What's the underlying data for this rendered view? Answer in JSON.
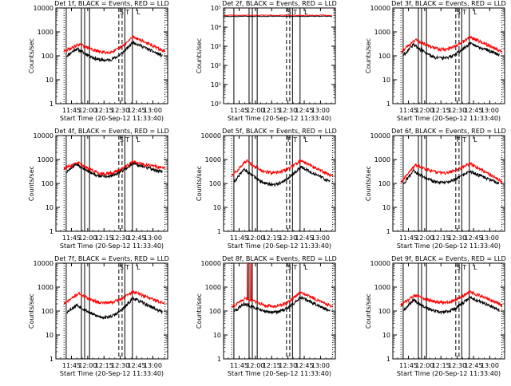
{
  "colors": {
    "black_series": "#000000",
    "red_series": "#ff0000",
    "axes": "#000000"
  },
  "chart_data": [
    {
      "type": "line",
      "title": "Det 1f, BLACK = Events, RED = LLD",
      "xlabel": "Start Time (20-Sep-12 11:33:40)",
      "ylabel": "Counts/sec",
      "ylog": true,
      "ylim": [
        1,
        10000
      ],
      "yticks": [
        "1",
        "10",
        "100",
        "1000",
        "10000"
      ],
      "xrange_min": [
        -3,
        100
      ],
      "xticks": [
        {
          "label": "11:45",
          "min": 11.33
        },
        {
          "label": "12:00",
          "min": 26.33
        },
        {
          "label": "12:15",
          "min": 41.33
        },
        {
          "label": "12:30",
          "min": 56.33
        },
        {
          "label": "12:45",
          "min": 71.33
        },
        {
          "label": "13:00",
          "min": 86.33
        }
      ],
      "solid_markers_min": [
        6.5,
        20.5,
        23.5,
        28.0,
        60.5,
        67.5
      ],
      "dashed_markers_min": [
        55.0,
        58.0
      ],
      "dotted_markers_min": [
        4.5,
        97.5
      ],
      "bracket_labels": [
        {
          "text": "S",
          "min": 57.5
        },
        {
          "text": "T",
          "min": 63.0
        },
        {
          "text": "L",
          "min": 73.0
        }
      ],
      "red_profile": {
        "type": "double",
        "start": 4.5,
        "end": 97.5,
        "base": 150,
        "peaks": [
          {
            "min": 18,
            "val": 300
          },
          {
            "min": 68,
            "val": 650
          }
        ],
        "dip": 140
      },
      "black_profile": {
        "type": "double",
        "start": 7,
        "end": 95,
        "base": 100,
        "peaks": [
          {
            "min": 16,
            "val": 200
          },
          {
            "min": 68,
            "val": 380
          }
        ],
        "dip": 65
      }
    },
    {
      "type": "line",
      "title": "Det 2f, BLACK = Events, RED = LLD",
      "xlabel": "Start Time (20-Sep-12 11:33:40)",
      "ylabel": "Counts/sec",
      "ylog": true,
      "ylim": [
        1,
        1000000
      ],
      "yticks": [
        "10⁰",
        "10¹",
        "10²",
        "10³",
        "10⁴",
        "10⁵"
      ],
      "xrange_min": [
        -3,
        100
      ],
      "xticks": [
        {
          "label": "11:45",
          "min": 11.33
        },
        {
          "label": "12:00",
          "min": 26.33
        },
        {
          "label": "12:15",
          "min": 41.33
        },
        {
          "label": "12:30",
          "min": 56.33
        },
        {
          "label": "12:45",
          "min": 71.33
        },
        {
          "label": "13:00",
          "min": 86.33
        }
      ],
      "solid_markers_min": [
        6.5,
        20.5,
        23.5,
        28.0,
        60.5,
        67.5
      ],
      "dashed_markers_min": [
        55.0,
        58.0
      ],
      "dotted_markers_min": [],
      "bracket_labels": [
        {
          "text": "S",
          "min": 57.5
        },
        {
          "text": "T",
          "min": 63.0
        },
        {
          "text": "L",
          "min": 73.0
        }
      ],
      "red_profile": {
        "type": "flat",
        "start": -3,
        "end": 97.5,
        "level": 350000
      },
      "black_profile": {
        "type": "flat",
        "start": -3,
        "end": 97.5,
        "level": 300000
      }
    },
    {
      "type": "line",
      "title": "Det 3f, BLACK = Events, RED = LLD",
      "xlabel": "Start Time (20-Sep-12 11:33:40)",
      "ylabel": "Counts/sec",
      "ylog": true,
      "ylim": [
        1,
        10000
      ],
      "yticks": [
        "1",
        "10",
        "100",
        "1000",
        "10000"
      ],
      "xrange_min": [
        -3,
        100
      ],
      "xticks": [
        {
          "label": "11:45",
          "min": 11.33
        },
        {
          "label": "12:00",
          "min": 26.33
        },
        {
          "label": "12:15",
          "min": 41.33
        },
        {
          "label": "12:30",
          "min": 56.33
        },
        {
          "label": "12:45",
          "min": 71.33
        },
        {
          "label": "13:00",
          "min": 86.33
        }
      ],
      "solid_markers_min": [
        6.5,
        20.5,
        23.5,
        28.0,
        60.5,
        67.5
      ],
      "dashed_markers_min": [
        55.0,
        58.0
      ],
      "dotted_markers_min": [
        4.5,
        97.5
      ],
      "bracket_labels": [
        {
          "text": "S",
          "min": 57.5
        },
        {
          "text": "T",
          "min": 63.0
        },
        {
          "text": "L",
          "min": 73.0
        }
      ],
      "red_profile": {
        "type": "double",
        "start": 4.5,
        "end": 97.5,
        "base": 150,
        "peaks": [
          {
            "min": 18,
            "val": 480
          },
          {
            "min": 68,
            "val": 620
          }
        ],
        "dip": 190
      },
      "black_profile": {
        "type": "double",
        "start": 7,
        "end": 95,
        "base": 110,
        "peaks": [
          {
            "min": 16,
            "val": 300
          },
          {
            "min": 68,
            "val": 340
          }
        ],
        "dip": 80
      }
    },
    {
      "type": "line",
      "title": "Det 4f, BLACK = Events, RED = LLD",
      "xlabel": "Start Time (20-Sep-12 11:33:40)",
      "ylabel": "Counts/sec",
      "ylog": true,
      "ylim": [
        1,
        10000
      ],
      "yticks": [
        "1",
        "10",
        "100",
        "1000",
        "10000"
      ],
      "xrange_min": [
        -3,
        100
      ],
      "xticks": [
        {
          "label": "11:45",
          "min": 11.33
        },
        {
          "label": "12:00",
          "min": 26.33
        },
        {
          "label": "12:15",
          "min": 41.33
        },
        {
          "label": "12:30",
          "min": 56.33
        },
        {
          "label": "12:45",
          "min": 71.33
        },
        {
          "label": "13:00",
          "min": 86.33
        }
      ],
      "solid_markers_min": [
        6.5,
        20.5,
        23.5,
        28.0,
        60.5,
        67.5
      ],
      "dashed_markers_min": [
        55.0,
        58.0
      ],
      "dotted_markers_min": [
        4.5,
        97.5
      ],
      "bracket_labels": [
        {
          "text": "S",
          "min": 57.5
        },
        {
          "text": "T",
          "min": 63.0
        },
        {
          "text": "L",
          "min": 73.0
        }
      ],
      "red_profile": {
        "type": "double",
        "start": 4.5,
        "end": 97.5,
        "base": 420,
        "peaks": [
          {
            "min": 18,
            "val": 720
          },
          {
            "min": 68,
            "val": 800
          }
        ],
        "dip": 260
      },
      "black_profile": {
        "type": "double",
        "start": 7,
        "end": 95,
        "base": 300,
        "peaks": [
          {
            "min": 16,
            "val": 650
          },
          {
            "min": 68,
            "val": 700
          }
        ],
        "dip": 200
      }
    },
    {
      "type": "line",
      "title": "Det 5f, BLACK = Events, RED = LLD",
      "xlabel": "Start Time (20-Sep-12 11:33:40)",
      "ylabel": "Counts/sec",
      "ylog": true,
      "ylim": [
        1,
        10000
      ],
      "yticks": [
        "1",
        "10",
        "100",
        "1000",
        "10000"
      ],
      "xrange_min": [
        -3,
        100
      ],
      "xticks": [
        {
          "label": "11:45",
          "min": 11.33
        },
        {
          "label": "12:00",
          "min": 26.33
        },
        {
          "label": "12:15",
          "min": 41.33
        },
        {
          "label": "12:30",
          "min": 56.33
        },
        {
          "label": "12:45",
          "min": 71.33
        },
        {
          "label": "13:00",
          "min": 86.33
        }
      ],
      "solid_markers_min": [
        6.5,
        20.5,
        23.5,
        28.0,
        60.5,
        67.5
      ],
      "dashed_markers_min": [
        55.0,
        58.0
      ],
      "dotted_markers_min": [
        4.5,
        97.5
      ],
      "bracket_labels": [
        {
          "text": "F",
          "min": 57.5
        },
        {
          "text": "T",
          "min": 63.0
        },
        {
          "text": "L",
          "min": 73.0
        }
      ],
      "red_profile": {
        "type": "double",
        "start": 4.5,
        "end": 97.5,
        "base": 200,
        "peaks": [
          {
            "min": 18,
            "val": 900
          },
          {
            "min": 68,
            "val": 900
          }
        ],
        "dip": 280
      },
      "black_profile": {
        "type": "double",
        "start": 7,
        "end": 95,
        "base": 120,
        "peaks": [
          {
            "min": 16,
            "val": 420
          },
          {
            "min": 68,
            "val": 500
          }
        ],
        "dip": 90
      }
    },
    {
      "type": "line",
      "title": "Det 6f, BLACK = Events, RED = LLD",
      "xlabel": "Start Time (20-Sep-12 11:33:40)",
      "ylabel": "Counts/sec",
      "ylog": true,
      "ylim": [
        1,
        10000
      ],
      "yticks": [
        "1",
        "10",
        "100",
        "1000",
        "10000"
      ],
      "xrange_min": [
        -3,
        100
      ],
      "xticks": [
        {
          "label": "11:45",
          "min": 11.33
        },
        {
          "label": "12:00",
          "min": 26.33
        },
        {
          "label": "12:15",
          "min": 41.33
        },
        {
          "label": "12:30",
          "min": 56.33
        },
        {
          "label": "12:45",
          "min": 71.33
        },
        {
          "label": "13:00",
          "min": 86.33
        }
      ],
      "solid_markers_min": [
        6.5,
        20.5,
        23.5,
        28.0,
        60.5,
        67.5
      ],
      "dashed_markers_min": [
        55.0,
        58.0
      ],
      "dotted_markers_min": [
        4.5,
        97.5
      ],
      "bracket_labels": [
        {
          "text": "F",
          "min": 57.5
        },
        {
          "text": "T",
          "min": 63.0
        },
        {
          "text": "L",
          "min": 73.0
        }
      ],
      "red_profile": {
        "type": "double",
        "start": 4.5,
        "end": 97.5,
        "base": 120,
        "peaks": [
          {
            "min": 18,
            "val": 600
          },
          {
            "min": 68,
            "val": 700
          }
        ],
        "dip": 280
      },
      "black_profile": {
        "type": "double",
        "start": 7,
        "end": 95,
        "base": 100,
        "peaks": [
          {
            "min": 16,
            "val": 350
          },
          {
            "min": 68,
            "val": 320
          }
        ],
        "dip": 110
      }
    },
    {
      "type": "line",
      "title": "Det 7f, BLACK = Events, RED = LLD",
      "xlabel": "Start Time (20-Sep-12 11:33:40)",
      "ylabel": "Counts/sec",
      "ylog": true,
      "ylim": [
        1,
        10000
      ],
      "yticks": [
        "1",
        "10",
        "100",
        "1000",
        "10000"
      ],
      "xrange_min": [
        -3,
        100
      ],
      "xticks": [
        {
          "label": "11:45",
          "min": 11.33
        },
        {
          "label": "12:00",
          "min": 26.33
        },
        {
          "label": "12:15",
          "min": 41.33
        },
        {
          "label": "12:30",
          "min": 56.33
        },
        {
          "label": "12:45",
          "min": 71.33
        },
        {
          "label": "13:00",
          "min": 86.33
        }
      ],
      "solid_markers_min": [
        6.5,
        20.5,
        23.5,
        28.0,
        60.5,
        67.5
      ],
      "dashed_markers_min": [
        55.0,
        58.0
      ],
      "dotted_markers_min": [
        4.5,
        97.5
      ],
      "bracket_labels": [
        {
          "text": "S",
          "min": 57.5
        },
        {
          "text": "T",
          "min": 63.0
        },
        {
          "text": "L",
          "min": 73.0
        }
      ],
      "red_profile": {
        "type": "double",
        "start": 4.5,
        "end": 97.5,
        "base": 200,
        "peaks": [
          {
            "min": 18,
            "val": 550
          },
          {
            "min": 68,
            "val": 650
          }
        ],
        "dip": 220
      },
      "black_profile": {
        "type": "double",
        "start": 7,
        "end": 95,
        "base": 90,
        "peaks": [
          {
            "min": 16,
            "val": 180
          },
          {
            "min": 68,
            "val": 350
          }
        ],
        "dip": 55
      }
    },
    {
      "type": "line",
      "title": "Det 8f, BLACK = Events, RED = LLD",
      "xlabel": "Start Time (20-Sep-12 11:33:40)",
      "ylabel": "Counts/sec",
      "ylog": true,
      "ylim": [
        1,
        10000
      ],
      "yticks": [
        "1",
        "10",
        "100",
        "1000",
        "10000"
      ],
      "xrange_min": [
        -3,
        100
      ],
      "xticks": [
        {
          "label": "11:45",
          "min": 11.33
        },
        {
          "label": "12:00",
          "min": 26.33
        },
        {
          "label": "12:15",
          "min": 41.33
        },
        {
          "label": "12:30",
          "min": 56.33
        },
        {
          "label": "12:45",
          "min": 71.33
        },
        {
          "label": "13:00",
          "min": 86.33
        }
      ],
      "solid_markers_min": [
        6.5,
        20.5,
        23.5,
        28.0,
        60.5,
        67.5
      ],
      "dashed_markers_min": [
        55.0,
        58.0
      ],
      "dotted_markers_min": [
        4.5,
        97.5
      ],
      "bracket_labels": [
        {
          "text": "S",
          "min": 57.5
        },
        {
          "text": "T",
          "min": 63.0
        },
        {
          "text": "L",
          "min": 73.0
        }
      ],
      "red_profile": {
        "type": "double",
        "start": 4.5,
        "end": 97.5,
        "base": 150,
        "peaks": [
          {
            "min": 18,
            "val": 350
          },
          {
            "min": 68,
            "val": 620
          }
        ],
        "dip": 160,
        "spikes": [
          {
            "min": 19,
            "val": 10000
          },
          {
            "min": 22,
            "val": 10000
          }
        ]
      },
      "black_profile": {
        "type": "double",
        "start": 7,
        "end": 95,
        "base": 100,
        "peaks": [
          {
            "min": 16,
            "val": 200
          },
          {
            "min": 68,
            "val": 380
          }
        ],
        "dip": 90
      }
    },
    {
      "type": "line",
      "title": "Det 9f, BLACK = Events, RED = LLD",
      "xlabel": "Start Time (20-Sep-12 11:33:40)",
      "ylabel": "Counts/sec",
      "ylog": true,
      "ylim": [
        1,
        10000
      ],
      "yticks": [
        "1",
        "10",
        "100",
        "1000",
        "10000"
      ],
      "xrange_min": [
        -3,
        100
      ],
      "xticks": [
        {
          "label": "11:45",
          "min": 11.33
        },
        {
          "label": "12:00",
          "min": 26.33
        },
        {
          "label": "12:15",
          "min": 41.33
        },
        {
          "label": "12:30",
          "min": 56.33
        },
        {
          "label": "12:45",
          "min": 71.33
        },
        {
          "label": "13:00",
          "min": 86.33
        }
      ],
      "solid_markers_min": [
        6.5,
        20.5,
        23.5,
        28.0,
        60.5,
        67.5
      ],
      "dashed_markers_min": [
        55.0,
        58.0
      ],
      "dotted_markers_min": [
        4.5,
        97.5
      ],
      "bracket_labels": [
        {
          "text": "S",
          "min": 57.5
        },
        {
          "text": "T",
          "min": 63.0
        },
        {
          "text": "L",
          "min": 73.0
        }
      ],
      "red_profile": {
        "type": "double",
        "start": 4.5,
        "end": 97.5,
        "base": 180,
        "peaks": [
          {
            "min": 18,
            "val": 480
          },
          {
            "min": 68,
            "val": 650
          }
        ],
        "dip": 230
      },
      "black_profile": {
        "type": "double",
        "start": 7,
        "end": 95,
        "base": 110,
        "peaks": [
          {
            "min": 16,
            "val": 300
          },
          {
            "min": 68,
            "val": 380
          }
        ],
        "dip": 90
      }
    }
  ]
}
